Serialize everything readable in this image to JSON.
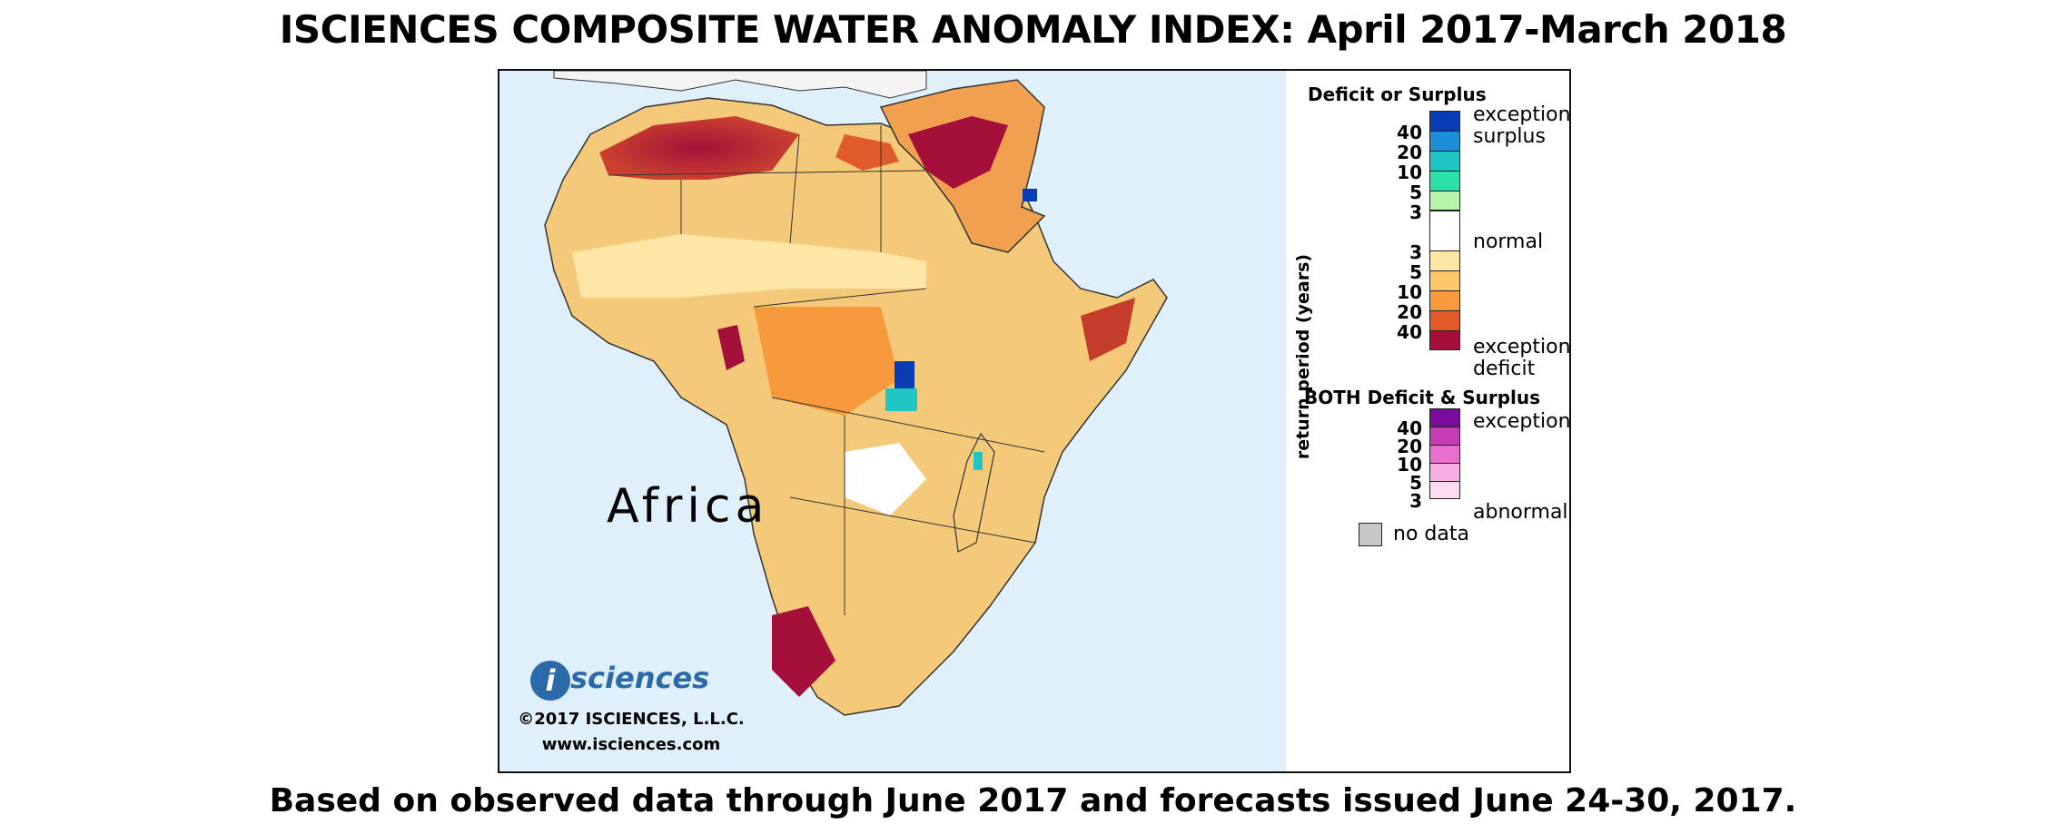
{
  "title": "ISCIENCES COMPOSITE WATER ANOMALY INDEX: April 2017-March 2018",
  "footer": "Based on observed data through June 2017 and forecasts issued June 24-30, 2017.",
  "map": {
    "region_label": "Africa",
    "logo_text": "sciences",
    "copyright": "©2017 ISCIENCES, L.L.C.",
    "url": "www.isciences.com",
    "ocean_color": "#dff0fa",
    "land_color": "#f5c97a"
  },
  "legend": {
    "deficit_surplus_title": "Deficit or Surplus",
    "axis_label": "return period (years)",
    "surplus_ticks": [
      "40",
      "20",
      "10",
      "5",
      "3"
    ],
    "deficit_ticks": [
      "3",
      "5",
      "10",
      "20",
      "40"
    ],
    "labels": {
      "exceptional_surplus_1": "exceptional",
      "exceptional_surplus_2": "surplus",
      "normal": "normal",
      "exceptional_deficit_1": "exceptional",
      "exceptional_deficit_2": "deficit"
    },
    "surplus_colors": [
      "#0a3db5",
      "#1e8ed8",
      "#1fc7c4",
      "#2de0a8",
      "#b6f5a8"
    ],
    "normal_color": "#ffffff",
    "deficit_colors": [
      "#fde6a6",
      "#fcc76a",
      "#f79a3d",
      "#e05a2a",
      "#a5103a"
    ],
    "both_title": "BOTH Deficit & Surplus",
    "both_ticks": [
      "40",
      "20",
      "10",
      "5",
      "3"
    ],
    "both_labels": {
      "top": "exceptional",
      "bottom": "abnormal"
    },
    "both_colors": [
      "#7a0a9c",
      "#c43cb4",
      "#e66fcf",
      "#f6aee3",
      "#fbdcef"
    ],
    "no_data_label": "no data",
    "no_data_color": "#c8c8c8"
  }
}
